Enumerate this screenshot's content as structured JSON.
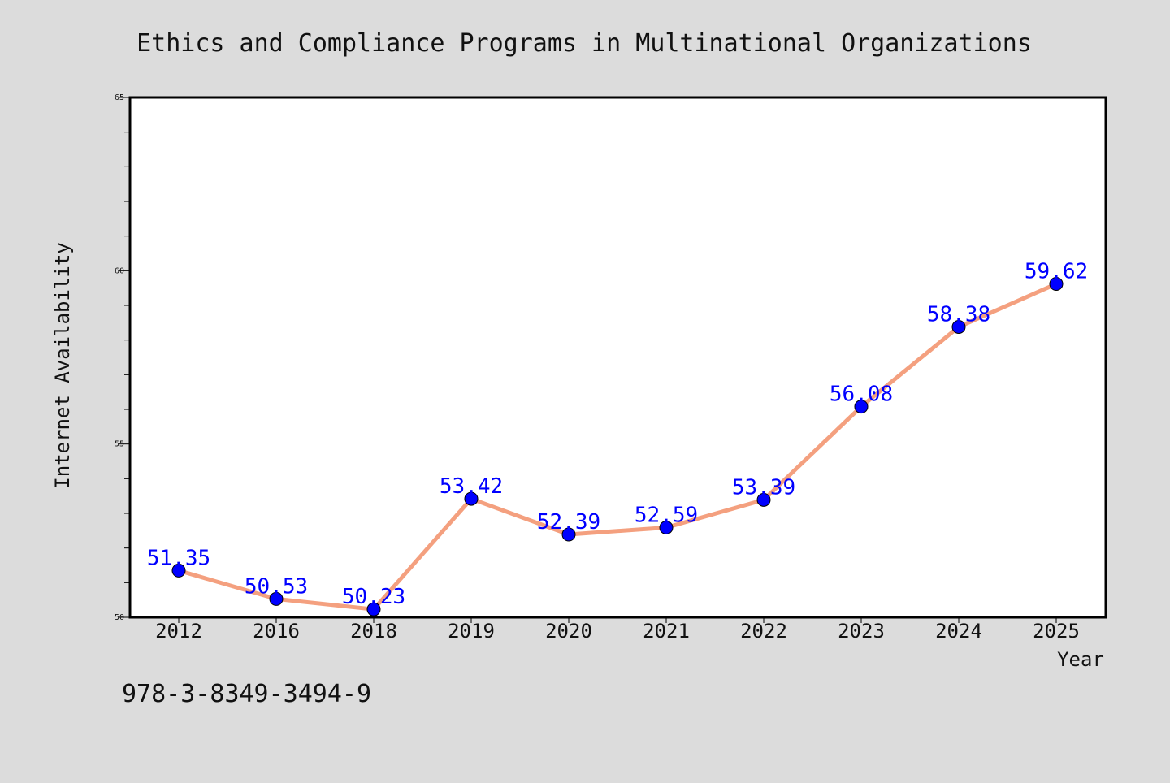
{
  "chart_data": {
    "type": "line",
    "title": "Ethics and Compliance Programs in Multinational Organizations",
    "xlabel": "Year",
    "ylabel": "Internet Availability",
    "categories": [
      "2012",
      "2016",
      "2018",
      "2019",
      "2020",
      "2021",
      "2022",
      "2023",
      "2024",
      "2025"
    ],
    "series": [
      {
        "values": [
          51.35,
          50.53,
          50.23,
          53.42,
          52.39,
          52.59,
          53.39,
          56.08,
          58.38,
          59.62
        ],
        "labels": [
          "51.35",
          "50.53",
          "50.23",
          "53.42",
          "52.39",
          "52.59",
          "53.39",
          "56.08",
          "58.38",
          "59.62"
        ]
      }
    ],
    "ylim": [
      50,
      65
    ],
    "yticks": [
      "50",
      "55",
      "60",
      "65"
    ],
    "grid": false,
    "legend": "none",
    "colors": {
      "line": "#f4a07f",
      "marker": "#0000ff",
      "label": "#0000ff",
      "background": "#dcdcdc",
      "plot_background": "#ffffff"
    }
  },
  "footer_code": "978-3-8349-3494-9"
}
